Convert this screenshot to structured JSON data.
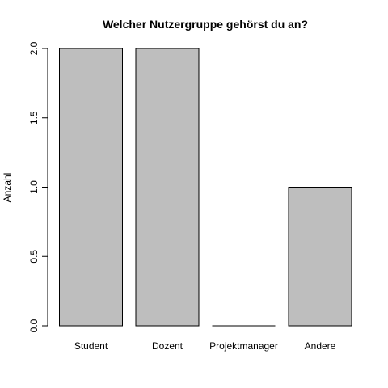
{
  "chart_data": {
    "type": "bar",
    "title": "Welcher Nutzergruppe gehörst du an?",
    "xlabel": "",
    "ylabel": "Anzahl",
    "categories": [
      "Student",
      "Dozent",
      "Projektmanager",
      "Andere"
    ],
    "values": [
      2,
      2,
      0,
      1
    ],
    "ylim": [
      0,
      2
    ],
    "yticks": [
      0.0,
      0.5,
      1.0,
      1.5,
      2.0
    ],
    "ytick_labels": [
      "0.0",
      "0.5",
      "1.0",
      "1.5",
      "2.0"
    ],
    "bar_color": "#bebebe",
    "bar_edge_color": "#000000",
    "grid": false,
    "legend": "none"
  }
}
